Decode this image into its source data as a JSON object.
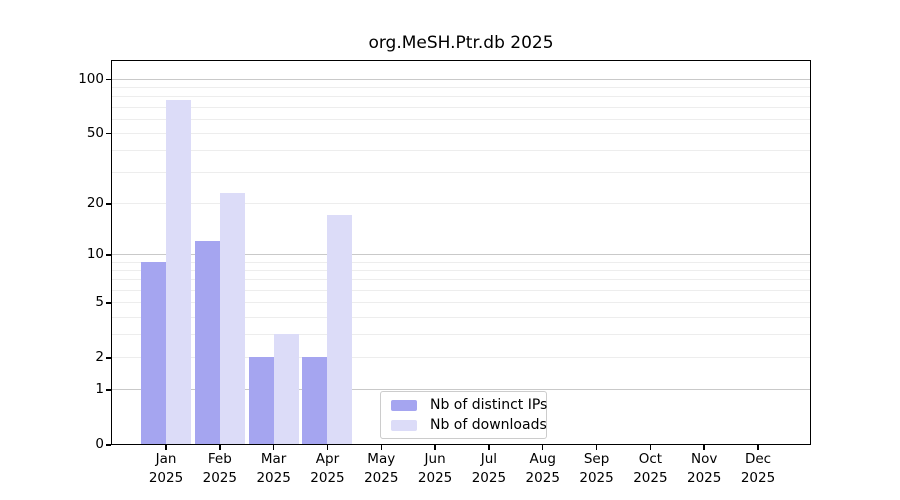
{
  "chart_data": {
    "type": "bar",
    "title": "org.MeSH.Ptr.db 2025",
    "categories": [
      "Jan",
      "Feb",
      "Mar",
      "Apr",
      "May",
      "Jun",
      "Jul",
      "Aug",
      "Sep",
      "Oct",
      "Nov",
      "Dec"
    ],
    "year": "2025",
    "series": [
      {
        "name": "Nb of distinct IPs",
        "color": "#a5a5f0",
        "values": [
          9,
          12,
          2,
          2,
          0,
          0,
          0,
          0,
          0,
          0,
          0,
          0
        ]
      },
      {
        "name": "Nb of downloads",
        "color": "#dcdcf8",
        "values": [
          76,
          23,
          3,
          17,
          0,
          0,
          0,
          0,
          0,
          0,
          0,
          0
        ]
      }
    ],
    "yscale": "log1p",
    "yticks": [
      0,
      1,
      2,
      5,
      10,
      20,
      50,
      100
    ],
    "ylim": [
      0,
      124
    ],
    "grid": "horizontal",
    "legend_position": "inside-bottom-center",
    "bar_layout": "paired-adjacent"
  }
}
